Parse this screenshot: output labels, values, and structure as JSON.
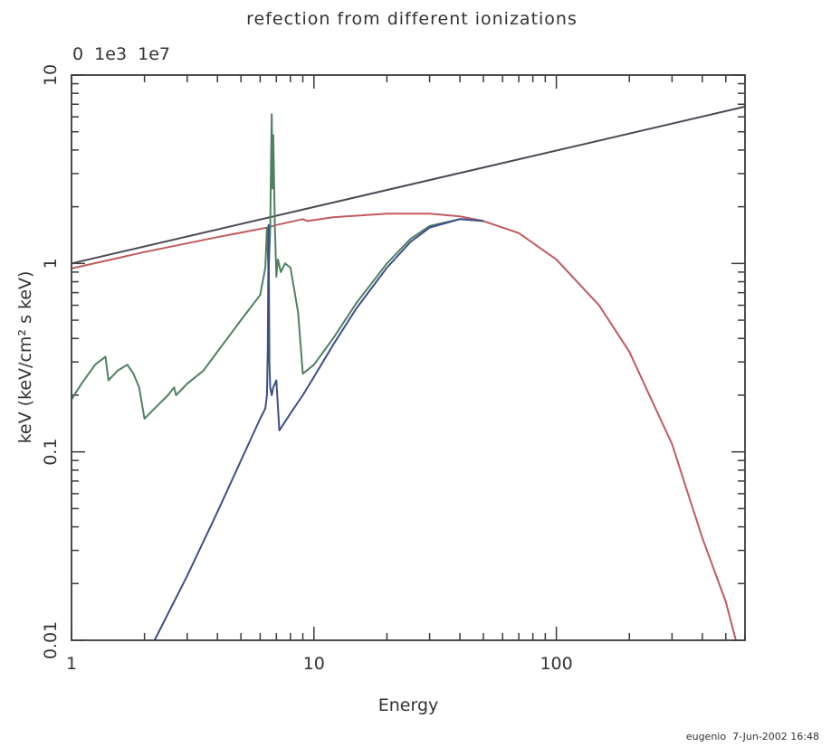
{
  "chart_data": {
    "type": "line",
    "title": "refection from different ionizations",
    "subtitle": "0  1e3  1e7",
    "xlabel": "Energy",
    "ylabel": "keV (keV/cm² s keV)",
    "xscale": "log",
    "yscale": "log",
    "xlim": [
      1,
      600
    ],
    "ylim": [
      0.01,
      10
    ],
    "x_ticks": [
      {
        "value": 1,
        "label": "1"
      },
      {
        "value": 10,
        "label": "10"
      },
      {
        "value": 100,
        "label": "100"
      }
    ],
    "y_ticks": [
      {
        "value": 0.01,
        "label": "0.01"
      },
      {
        "value": 0.1,
        "label": "0.1"
      },
      {
        "value": 1,
        "label": "1"
      },
      {
        "value": 10,
        "label": "10"
      }
    ],
    "grid": false,
    "series": [
      {
        "color": "#4a4a55",
        "points": [
          [
            1,
            1.0
          ],
          [
            600,
            6.8
          ]
        ]
      },
      {
        "color": "#c05a5e",
        "points": [
          [
            1,
            0.94
          ],
          [
            2,
            1.15
          ],
          [
            4,
            1.38
          ],
          [
            6.4,
            1.55
          ],
          [
            7,
            1.6
          ],
          [
            9,
            1.72
          ],
          [
            9.4,
            1.68
          ],
          [
            12,
            1.76
          ],
          [
            20,
            1.84
          ],
          [
            30,
            1.84
          ],
          [
            40,
            1.78
          ],
          [
            50,
            1.68
          ],
          [
            70,
            1.45
          ],
          [
            100,
            1.05
          ],
          [
            150,
            0.6
          ],
          [
            200,
            0.34
          ],
          [
            300,
            0.11
          ],
          [
            400,
            0.035
          ],
          [
            500,
            0.016
          ],
          [
            550,
            0.01
          ]
        ]
      },
      {
        "color": "#4f8060",
        "points": [
          [
            1,
            0.19
          ],
          [
            1.1,
            0.23
          ],
          [
            1.25,
            0.29
          ],
          [
            1.38,
            0.32
          ],
          [
            1.42,
            0.24
          ],
          [
            1.55,
            0.27
          ],
          [
            1.7,
            0.29
          ],
          [
            1.8,
            0.26
          ],
          [
            1.9,
            0.22
          ],
          [
            2.0,
            0.15
          ],
          [
            2.2,
            0.17
          ],
          [
            2.5,
            0.2
          ],
          [
            2.65,
            0.22
          ],
          [
            2.7,
            0.2
          ],
          [
            3.0,
            0.23
          ],
          [
            3.5,
            0.27
          ],
          [
            4.0,
            0.34
          ],
          [
            5.0,
            0.5
          ],
          [
            6.0,
            0.68
          ],
          [
            6.3,
            0.95
          ],
          [
            6.4,
            1.55
          ],
          [
            6.5,
            0.9
          ],
          [
            6.6,
            1.5
          ],
          [
            6.65,
            3.5
          ],
          [
            6.7,
            6.2
          ],
          [
            6.75,
            2.5
          ],
          [
            6.8,
            4.8
          ],
          [
            6.9,
            1.6
          ],
          [
            7.0,
            0.85
          ],
          [
            7.05,
            0.95
          ],
          [
            7.1,
            1.05
          ],
          [
            7.3,
            0.9
          ],
          [
            7.6,
            1.0
          ],
          [
            8.0,
            0.95
          ],
          [
            8.6,
            0.55
          ],
          [
            9.0,
            0.26
          ],
          [
            10,
            0.29
          ],
          [
            12,
            0.4
          ],
          [
            15,
            0.62
          ],
          [
            20,
            1.0
          ],
          [
            25,
            1.35
          ],
          [
            30,
            1.58
          ],
          [
            40,
            1.72
          ],
          [
            50,
            1.68
          ]
        ]
      },
      {
        "color": "#3d4f8a",
        "points": [
          [
            2.2,
            0.01
          ],
          [
            3,
            0.022
          ],
          [
            4,
            0.048
          ],
          [
            5,
            0.09
          ],
          [
            6,
            0.15
          ],
          [
            6.3,
            0.17
          ],
          [
            6.4,
            0.2
          ],
          [
            6.45,
            0.35
          ],
          [
            6.5,
            1.6
          ],
          [
            6.55,
            0.3
          ],
          [
            6.6,
            0.22
          ],
          [
            6.7,
            0.2
          ],
          [
            6.8,
            0.22
          ],
          [
            7.0,
            0.24
          ],
          [
            7.2,
            0.13
          ],
          [
            8,
            0.16
          ],
          [
            9,
            0.2
          ],
          [
            10,
            0.25
          ],
          [
            12,
            0.37
          ],
          [
            15,
            0.58
          ],
          [
            20,
            0.95
          ],
          [
            25,
            1.3
          ],
          [
            30,
            1.55
          ],
          [
            40,
            1.72
          ],
          [
            50,
            1.68
          ]
        ]
      }
    ]
  },
  "footer": {
    "credit": "eugenio  7-Jun-2002 16:48"
  }
}
